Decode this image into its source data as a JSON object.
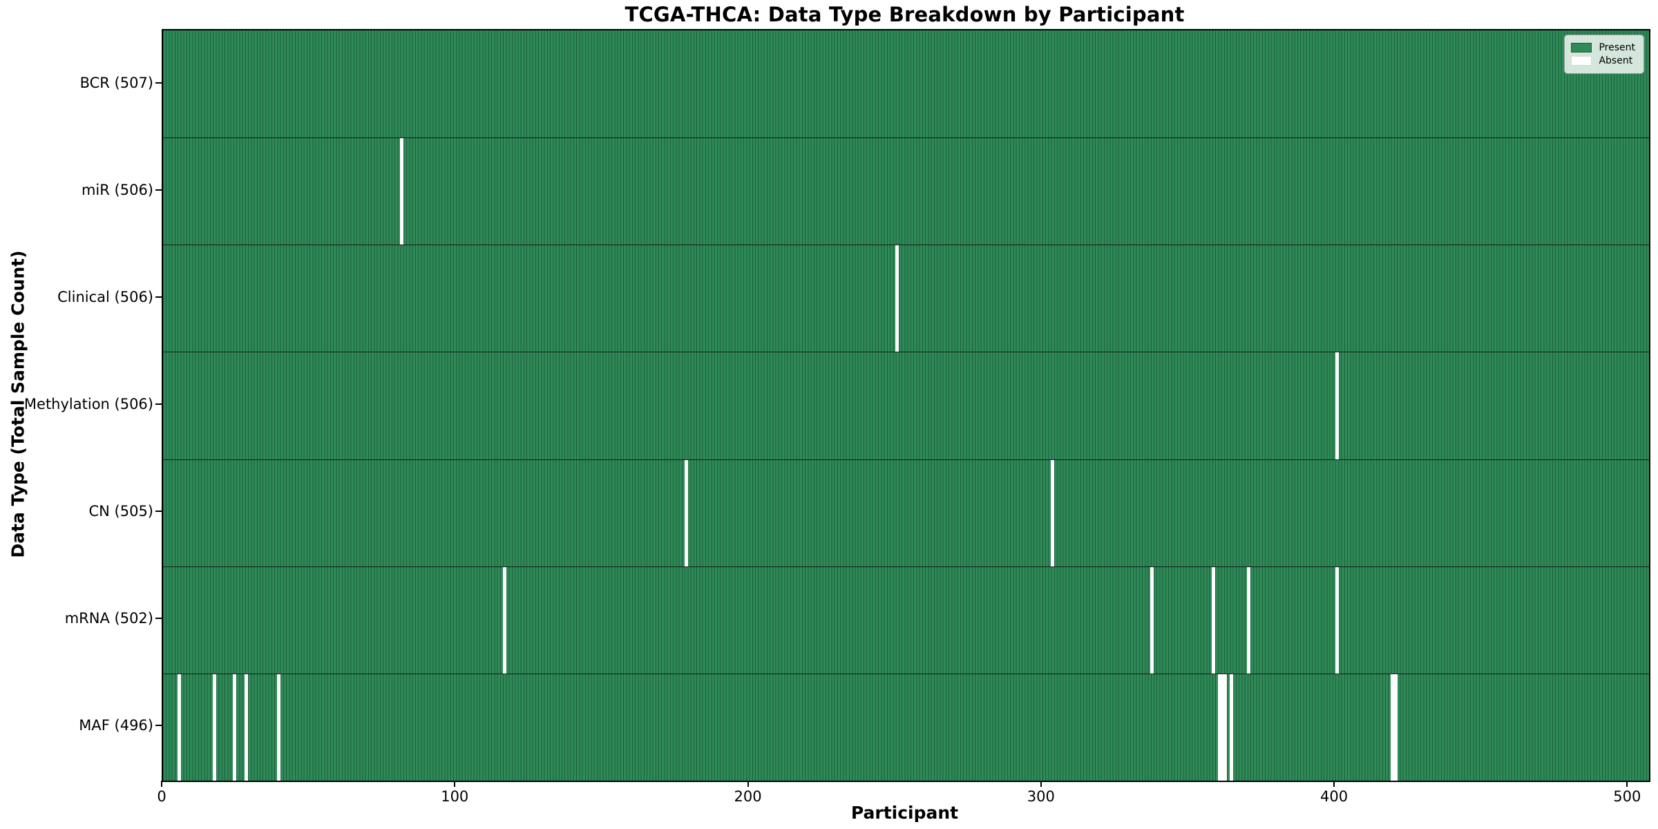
{
  "title": "TCGA-THCA: Data Type Breakdown by Participant",
  "xlabel": "Participant",
  "ylabel": "Data Type (Total Sample Count)",
  "legend": {
    "present_label": "Present",
    "absent_label": "Absent"
  },
  "colors": {
    "present": "#2e8b57",
    "present_edge": "#1e5e3c",
    "absent": "#ffffff",
    "row_divider": "#1a1a1a",
    "axis": "#000000"
  },
  "chart_data": {
    "type": "heatmap",
    "title": "TCGA-THCA: Data Type Breakdown by Participant",
    "xlabel": "Participant",
    "ylabel": "Data Type (Total Sample Count)",
    "x_ticks": [
      0,
      100,
      200,
      300,
      400,
      500
    ],
    "x_range": [
      0,
      507
    ],
    "total_participants": 507,
    "grid": false,
    "legend_position": "upper right",
    "legend": [
      {
        "label": "Present",
        "color": "#2e8b57"
      },
      {
        "label": "Absent",
        "color": "#ffffff"
      }
    ],
    "rows": [
      {
        "name": "BCR",
        "label": "BCR (507)",
        "present_count": 507,
        "absent_participants": []
      },
      {
        "name": "miR",
        "label": "miR (506)",
        "present_count": 506,
        "absent_participants": [
          81
        ]
      },
      {
        "name": "Clinical",
        "label": "Clinical (506)",
        "present_count": 506,
        "absent_participants": [
          250
        ]
      },
      {
        "name": "Methylation",
        "label": "Methylation (506)",
        "present_count": 506,
        "absent_participants": [
          400
        ]
      },
      {
        "name": "CN",
        "label": "CN (505)",
        "present_count": 505,
        "absent_participants": [
          178,
          303
        ]
      },
      {
        "name": "mRNA",
        "label": "mRNA (502)",
        "present_count": 502,
        "absent_participants": [
          116,
          337,
          358,
          370,
          400
        ]
      },
      {
        "name": "MAF",
        "label": "MAF (496)",
        "present_count": 496,
        "absent_participants": [
          5,
          17,
          24,
          28,
          39,
          360,
          361,
          362,
          364,
          419,
          420
        ]
      }
    ]
  }
}
